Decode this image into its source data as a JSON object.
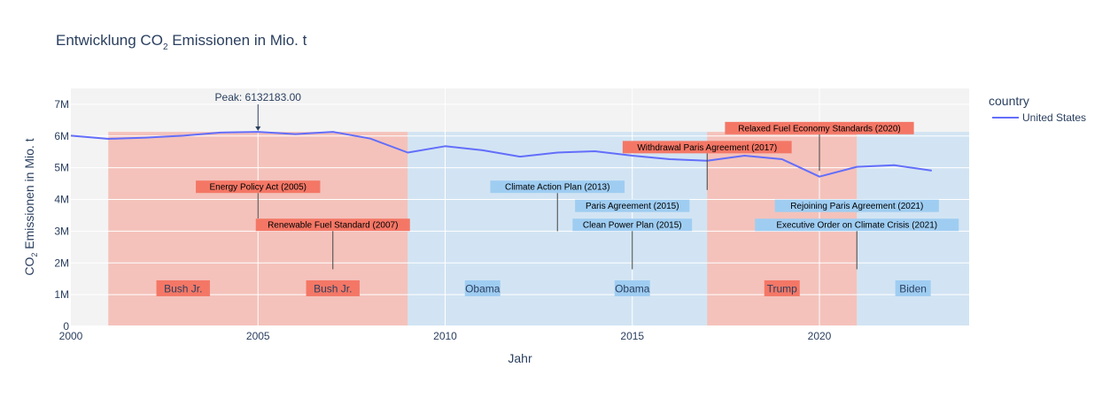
{
  "chart_data": {
    "type": "line",
    "title_main": "Entwicklung CO",
    "title_sub": "2",
    "title_rest": " Emissionen in Mio. t",
    "xlabel": "Jahr",
    "ylabel_main": "CO",
    "ylabel_sub": "2",
    "ylabel_rest": " Emissionen in Mio. t",
    "xlim": [
      2000,
      2024
    ],
    "ylim": [
      0,
      7500000
    ],
    "x_ticks": [
      2000,
      2005,
      2010,
      2015,
      2020
    ],
    "y_ticks": [
      {
        "value": 0,
        "label": "0"
      },
      {
        "value": 1000000,
        "label": "1M"
      },
      {
        "value": 2000000,
        "label": "2M"
      },
      {
        "value": 3000000,
        "label": "3M"
      },
      {
        "value": 4000000,
        "label": "4M"
      },
      {
        "value": 5000000,
        "label": "5M"
      },
      {
        "value": 6000000,
        "label": "6M"
      },
      {
        "value": 7000000,
        "label": "7M"
      }
    ],
    "legend_title": "country",
    "legend_position": "top-right",
    "grid": true,
    "series": [
      {
        "name": "United States",
        "color": "#636efa",
        "x": [
          2000,
          2001,
          2002,
          2003,
          2004,
          2005,
          2006,
          2007,
          2008,
          2009,
          2010,
          2011,
          2012,
          2013,
          2014,
          2015,
          2016,
          2017,
          2018,
          2019,
          2020,
          2021,
          2022,
          2023
        ],
        "y": [
          6010000,
          5910000,
          5950000,
          6010000,
          6110000,
          6132183,
          6060000,
          6130000,
          5920000,
          5480000,
          5680000,
          5550000,
          5350000,
          5480000,
          5520000,
          5380000,
          5270000,
          5220000,
          5380000,
          5270000,
          4720000,
          5030000,
          5080000,
          4910000
        ]
      }
    ],
    "presidencies": [
      {
        "label": "Bush Jr.",
        "start": 2001,
        "end": 2009,
        "color": "#f47766",
        "label_positions": [
          2003,
          2007
        ]
      },
      {
        "label": "Obama",
        "start": 2009,
        "end": 2017,
        "color": "#9fcdf2",
        "label_positions": [
          2011,
          2015
        ]
      },
      {
        "label": "Trump",
        "start": 2017,
        "end": 2021,
        "color": "#f47766",
        "label_positions": [
          2019
        ]
      },
      {
        "label": "Biden",
        "start": 2021,
        "end": 2024,
        "color": "#9fcdf2",
        "label_positions": [
          2022.5
        ]
      }
    ],
    "peak": {
      "text": "Peak: 6132183.00",
      "x": 2005,
      "y": 6132183
    },
    "annotations": [
      {
        "text": "Energy Policy Act (2005)",
        "x": 2005,
        "y": 4400000,
        "y_end": 3400000,
        "color": "#f47766"
      },
      {
        "text": "Renewable Fuel Standard (2007)",
        "x": 2007,
        "y": 3200000,
        "y_end": 1800000,
        "color": "#f47766"
      },
      {
        "text": "Climate Action Plan (2013)",
        "x": 2013,
        "y": 4400000,
        "y_end": 3000000,
        "color": "#9fcdf2"
      },
      {
        "text": "Paris Agreement (2015)",
        "x": 2015,
        "y": 3800000,
        "y_end": 3600000,
        "color": "#9fcdf2"
      },
      {
        "text": "Clean Power Plan (2015)",
        "x": 2015,
        "y": 3200000,
        "y_end": 1800000,
        "color": "#9fcdf2"
      },
      {
        "text": "Withdrawal Paris Agreement (2017)",
        "x": 2017,
        "y": 5650000,
        "y_end": 4300000,
        "color": "#f47766"
      },
      {
        "text": "Relaxed Fuel Economy Standards (2020)",
        "x": 2020,
        "y": 6250000,
        "y_end": 4900000,
        "color": "#f47766"
      },
      {
        "text": "Rejoining Paris Agreement (2021)",
        "x": 2021,
        "y": 3800000,
        "y_end": 3600000,
        "color": "#9fcdf2"
      },
      {
        "text": "Executive Order on Climate Crisis (2021)",
        "x": 2021,
        "y": 3200000,
        "y_end": 1800000,
        "color": "#9fcdf2"
      }
    ]
  }
}
